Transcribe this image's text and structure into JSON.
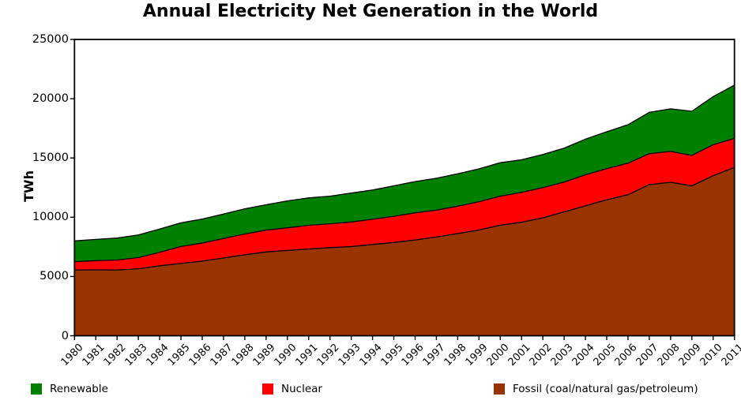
{
  "chart": {
    "title": "Annual Electricity Net Generation in the World",
    "ylabel": "TWh"
  },
  "legend": {
    "items": [
      {
        "label": "Renewable",
        "color": "#008000"
      },
      {
        "label": "Nuclear",
        "color": "#ff0000"
      },
      {
        "label": "Fossil (coal/natural gas/petroleum)",
        "color": "#993300"
      }
    ]
  },
  "chart_data": {
    "type": "area",
    "stacked": true,
    "title": "Annual Electricity Net Generation in the World",
    "xlabel": "",
    "ylabel": "TWh",
    "ylim": [
      0,
      25000
    ],
    "ytick_step": 5000,
    "grid": false,
    "legend_position": "bottom",
    "xtick_rotation": 45,
    "edge_color": "#000000",
    "x": [
      1980,
      1981,
      1982,
      1983,
      1984,
      1985,
      1986,
      1987,
      1988,
      1989,
      1990,
      1991,
      1992,
      1993,
      1994,
      1995,
      1996,
      1997,
      1998,
      1999,
      2000,
      2001,
      2002,
      2003,
      2004,
      2005,
      2006,
      2007,
      2008,
      2009,
      2010,
      2011
    ],
    "series": [
      {
        "name": "Fossil (coal/natural gas/petroleum)",
        "color": "#993300",
        "values": [
          5550,
          5560,
          5550,
          5650,
          5900,
          6100,
          6300,
          6560,
          6830,
          7070,
          7200,
          7320,
          7440,
          7520,
          7700,
          7870,
          8080,
          8330,
          8620,
          8920,
          9330,
          9580,
          9950,
          10450,
          10960,
          11470,
          11900,
          12750,
          12950,
          12650,
          13500,
          14200
        ]
      },
      {
        "name": "Nuclear",
        "color": "#ff0000",
        "values": [
          700,
          780,
          840,
          940,
          1140,
          1430,
          1520,
          1650,
          1760,
          1840,
          1910,
          2000,
          2010,
          2080,
          2130,
          2210,
          2290,
          2270,
          2310,
          2390,
          2450,
          2520,
          2550,
          2520,
          2620,
          2630,
          2660,
          2610,
          2600,
          2570,
          2620,
          2450
        ]
      },
      {
        "name": "Renewable",
        "color": "#008000",
        "values": [
          1750,
          1790,
          1850,
          1910,
          1960,
          2000,
          2030,
          2060,
          2120,
          2140,
          2270,
          2310,
          2330,
          2440,
          2470,
          2570,
          2640,
          2690,
          2730,
          2770,
          2820,
          2750,
          2800,
          2860,
          3010,
          3110,
          3250,
          3490,
          3600,
          3720,
          4060,
          4500
        ]
      }
    ]
  }
}
